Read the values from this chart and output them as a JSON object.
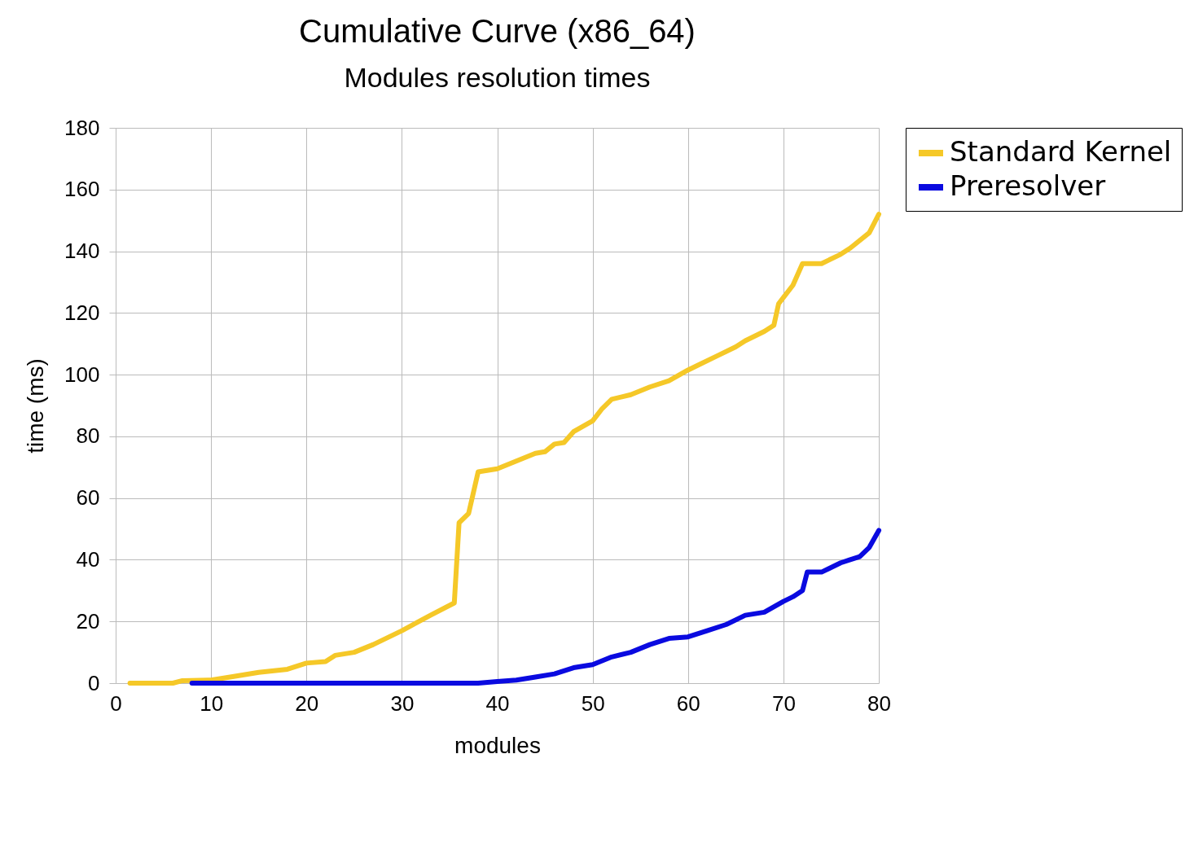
{
  "chart_data": {
    "type": "line",
    "title": "Cumulative Curve (x86_64)",
    "subtitle": "Modules resolution times",
    "xlabel": "modules",
    "ylabel": "time (ms)",
    "xlim": [
      0,
      80
    ],
    "xticks": [
      0,
      10,
      20,
      30,
      40,
      50,
      60,
      70,
      80
    ],
    "ylim": [
      0,
      180
    ],
    "yticks": [
      0,
      20,
      40,
      60,
      80,
      100,
      120,
      140,
      160,
      180
    ],
    "grid": true,
    "legend": "top right",
    "line_style": "solid",
    "marker": "none",
    "series": [
      {
        "name": "Standard Kernel",
        "color": "#f5c828",
        "x": [
          1.5,
          6,
          7,
          10,
          12,
          15,
          18,
          20,
          22,
          23,
          25,
          27,
          30,
          33,
          35.5,
          36,
          37,
          38,
          40,
          42,
          44,
          45,
          46,
          47,
          48,
          50,
          51,
          52,
          54,
          56,
          58,
          60,
          61,
          63,
          65,
          66,
          68,
          69,
          69.5,
          70,
          71,
          72,
          74,
          76,
          77,
          79,
          80
        ],
        "values": [
          0,
          0,
          0.8,
          1,
          2,
          3.5,
          4.5,
          6.5,
          7,
          9,
          10,
          12.5,
          17,
          22,
          26,
          52,
          55,
          68.5,
          69.5,
          72,
          74.5,
          75,
          77.5,
          78,
          81.5,
          85,
          89,
          92,
          93.5,
          96,
          98,
          101.5,
          103,
          106,
          109,
          111,
          114,
          116,
          123,
          125,
          129,
          136,
          136,
          139,
          141,
          146,
          152
        ]
      },
      {
        "name": "Preresolver",
        "color": "#0a0ae0",
        "x": [
          8,
          12,
          38,
          40,
          42,
          44,
          46,
          48,
          50,
          52,
          54,
          56,
          58,
          60,
          62,
          64,
          66,
          68,
          70,
          71,
          72,
          72.5,
          74,
          76,
          77,
          78,
          79,
          80
        ],
        "values": [
          0,
          0,
          0,
          0.5,
          1,
          2,
          3,
          5,
          6,
          8.5,
          10,
          12.5,
          14.5,
          15,
          17,
          19,
          22,
          23,
          26.5,
          28,
          30,
          36,
          36,
          39,
          40,
          41,
          44,
          49.5
        ]
      }
    ]
  }
}
